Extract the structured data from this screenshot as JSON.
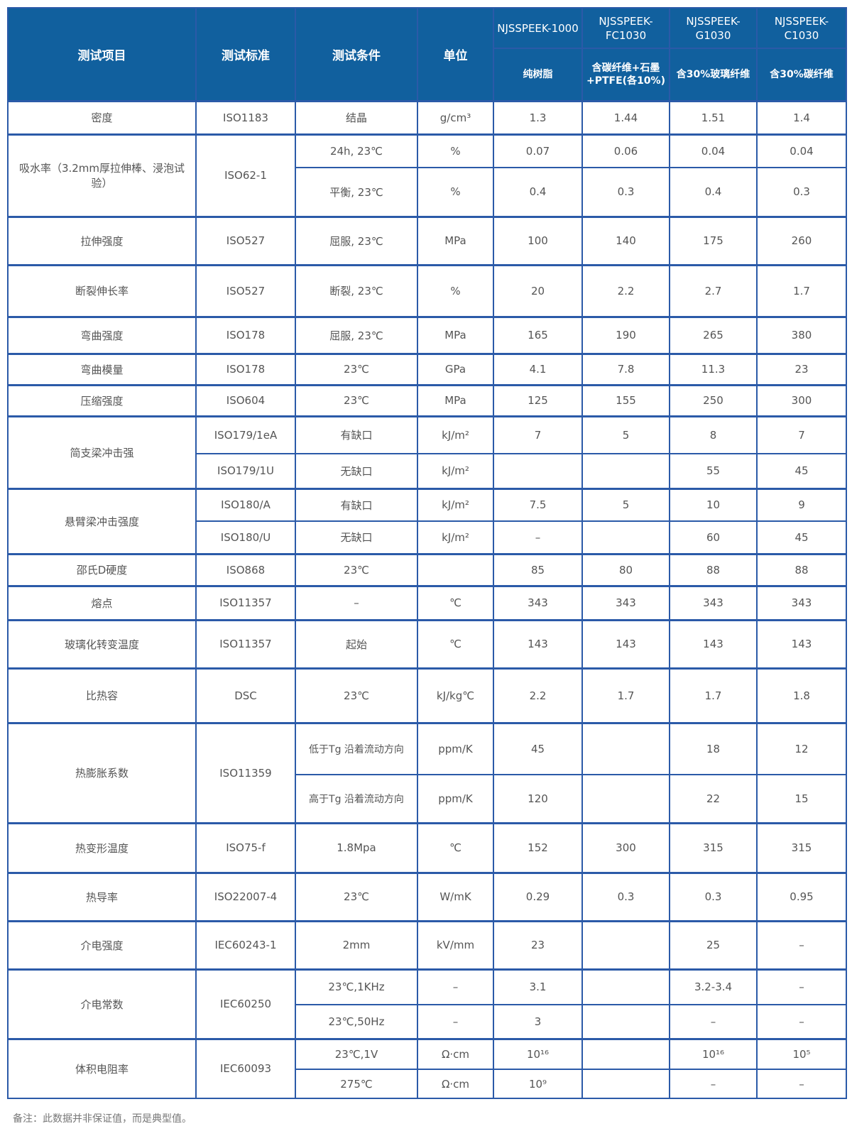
{
  "header": {
    "columns": [
      "测试项目",
      "测试标准",
      "测试条件",
      "单位"
    ],
    "models": [
      "NJSSPEEK-1000",
      "NJSSPEEK-FC1030",
      "NJSSPEEK-G1030",
      "NJSSPEEK-C1030"
    ],
    "descriptions": [
      "纯树脂",
      "含碳纤维+石墨+PTFE(各10%)",
      "含30%玻璃纤维",
      "含30%碳纤维"
    ]
  },
  "rows": [
    {
      "item": "密度",
      "standard": "ISO1183",
      "sub": [
        {
          "cond": "结晶",
          "unit": "g/cm³",
          "values": [
            "1.3",
            "1.44",
            "1.51",
            "1.4"
          ]
        }
      ]
    },
    {
      "item": "吸水率（3.2mm厚拉伸棒、浸泡试验）",
      "standard": "ISO62-1",
      "sub": [
        {
          "cond": "24h, 23℃",
          "unit": "%",
          "values": [
            "0.07",
            "0.06",
            "0.04",
            "0.04"
          ]
        },
        {
          "cond": "平衡, 23℃",
          "unit": "%",
          "values": [
            "0.4",
            "0.3",
            "0.4",
            "0.3"
          ]
        }
      ]
    },
    {
      "item": "拉伸强度",
      "standard": "ISO527",
      "sub": [
        {
          "cond": "屈服, 23℃",
          "unit": "MPa",
          "values": [
            "100",
            "140",
            "175",
            "260"
          ]
        }
      ]
    },
    {
      "item": "断裂伸长率",
      "standard": "ISO527",
      "sub": [
        {
          "cond": "断裂, 23℃",
          "unit": "%",
          "values": [
            "20",
            "2.2",
            "2.7",
            "1.7"
          ]
        }
      ]
    },
    {
      "item": "弯曲强度",
      "standard": "ISO178",
      "sub": [
        {
          "cond": "屈服, 23℃",
          "unit": "MPa",
          "values": [
            "165",
            "190",
            "265",
            "380"
          ]
        }
      ]
    },
    {
      "item": "弯曲模量",
      "standard": "ISO178",
      "sub": [
        {
          "cond": "23℃",
          "unit": "GPa",
          "values": [
            "4.1",
            "7.8",
            "11.3",
            "23"
          ]
        }
      ]
    },
    {
      "item": "压缩强度",
      "standard": "ISO604",
      "sub": [
        {
          "cond": "23℃",
          "unit": "MPa",
          "values": [
            "125",
            "155",
            "250",
            "300"
          ]
        }
      ]
    },
    {
      "item": "简支梁冲击强",
      "sub": [
        {
          "standard": "ISO179/1eA",
          "cond": "有缺口",
          "unit": "kJ/m²",
          "values": [
            "7",
            "5",
            "8",
            "7"
          ]
        },
        {
          "standard": "ISO179/1U",
          "cond": "无缺口",
          "unit": "kJ/m²",
          "values": [
            "",
            "",
            "55",
            "45"
          ]
        }
      ]
    },
    {
      "item": "悬臂梁冲击强度",
      "sub": [
        {
          "standard": "ISO180/A",
          "cond": "有缺口",
          "unit": "kJ/m²",
          "values": [
            "7.5",
            "5",
            "10",
            "9"
          ]
        },
        {
          "standard": "ISO180/U",
          "cond": "无缺口",
          "unit": "kJ/m²",
          "values": [
            "–",
            "",
            "60",
            "45"
          ]
        }
      ]
    },
    {
      "item": "邵氏D硬度",
      "standard": "ISO868",
      "sub": [
        {
          "cond": "23℃",
          "unit": "",
          "values": [
            "85",
            "80",
            "88",
            "88"
          ]
        }
      ]
    },
    {
      "item": "熔点",
      "standard": "ISO11357",
      "sub": [
        {
          "cond": "–",
          "unit": "℃",
          "values": [
            "343",
            "343",
            "343",
            "343"
          ]
        }
      ]
    },
    {
      "item": "玻璃化转变温度",
      "standard": "ISO11357",
      "sub": [
        {
          "cond": "起始",
          "unit": "℃",
          "values": [
            "143",
            "143",
            "143",
            "143"
          ]
        }
      ]
    },
    {
      "item": "比热容",
      "standard": "DSC",
      "sub": [
        {
          "cond": "23℃",
          "unit": "kJ/kg℃",
          "values": [
            "2.2",
            "1.7",
            "1.7",
            "1.8"
          ]
        }
      ]
    },
    {
      "item": "热膨胀系数",
      "standard": "ISO11359",
      "sub": [
        {
          "cond": "低于Tg 沿着流动方向",
          "unit": "ppm/K",
          "values": [
            "45",
            "",
            "18",
            "12"
          ]
        },
        {
          "cond": "高于Tg 沿着流动方向",
          "unit": "ppm/K",
          "values": [
            "120",
            "",
            "22",
            "15"
          ]
        }
      ]
    },
    {
      "item": "热变形温度",
      "standard": "ISO75-f",
      "sub": [
        {
          "cond": "1.8Mpa",
          "unit": "℃",
          "values": [
            "152",
            "300",
            "315",
            "315"
          ]
        }
      ]
    },
    {
      "item": "热导率",
      "standard": "ISO22007-4",
      "sub": [
        {
          "cond": "23℃",
          "unit": "W/mK",
          "values": [
            "0.29",
            "0.3",
            "0.3",
            "0.95"
          ]
        }
      ]
    },
    {
      "item": "介电强度",
      "standard": "IEC60243-1",
      "sub": [
        {
          "cond": "2mm",
          "unit": "kV/mm",
          "values": [
            "23",
            "",
            "25",
            "–"
          ]
        }
      ]
    },
    {
      "item": "介电常数",
      "standard": "IEC60250",
      "sub": [
        {
          "cond": "23℃,1KHz",
          "unit": "–",
          "values": [
            "3.1",
            "",
            "3.2-3.4",
            "–"
          ]
        },
        {
          "cond": "23℃,50Hz",
          "unit": "–",
          "values": [
            "3",
            "",
            "–",
            "–"
          ]
        }
      ]
    },
    {
      "item": "体积电阻率",
      "standard": "IEC60093",
      "sub": [
        {
          "cond": "23℃,1V",
          "unit": "Ω·cm",
          "values": [
            "10¹⁶",
            "",
            "10¹⁶",
            "10⁵"
          ]
        },
        {
          "cond": "275℃",
          "unit": "Ω·cm",
          "values": [
            "10⁹",
            "",
            "–",
            "–"
          ]
        }
      ]
    }
  ],
  "note": "备注：此数据并非保证值，而是典型值。"
}
